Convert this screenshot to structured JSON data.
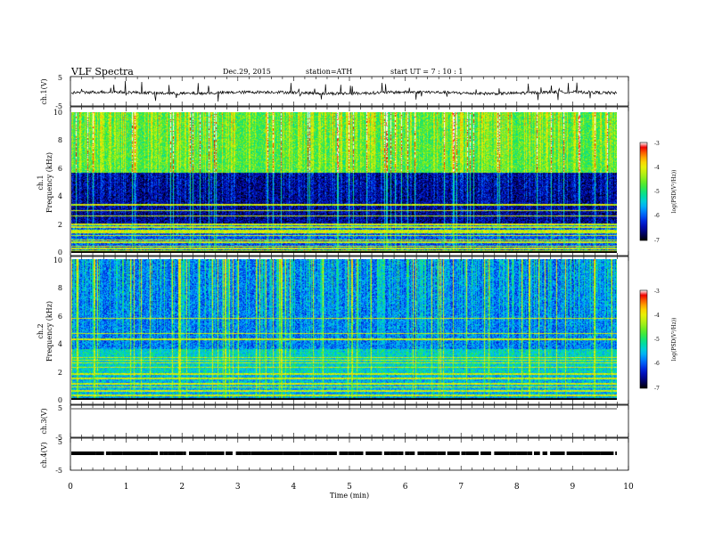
{
  "header": {
    "title": "VLF  Spectra",
    "date": "Dec.29, 2015",
    "station": "station=ATH",
    "start": "start  UT  =   7 : 10 : 1"
  },
  "chart_data": [
    {
      "type": "line",
      "id": "ch1-waveform",
      "ylabel": "ch.1(V)",
      "yticks": [
        "5",
        "-5"
      ],
      "ylim": [
        -5,
        5
      ],
      "xlim": [
        0,
        10
      ],
      "baseline_v": -0.5,
      "noise_v": 0.5
    },
    {
      "type": "heatmap",
      "id": "ch1-spectrogram",
      "ylabel": [
        "ch.1",
        "Frequency  (kHz)"
      ],
      "yticks": [
        "10",
        "8",
        "6",
        "4",
        "2",
        "0"
      ],
      "ylim_khz": [
        0,
        10
      ],
      "xlim_min": [
        0,
        9.8
      ],
      "colorbar": {
        "label": "log(PSD(V²/Hz))",
        "ticks": [
          "-3",
          "-4",
          "-5",
          "-6",
          "-7"
        ],
        "range": [
          -7,
          -3
        ]
      },
      "bands_khz": [
        {
          "from": 0.0,
          "to": 2.0,
          "level": -6.0
        },
        {
          "from": 2.0,
          "to": 5.7,
          "level": -6.6
        },
        {
          "from": 5.7,
          "to": 10.0,
          "level": -4.8
        }
      ],
      "lines_khz": [
        0.1,
        0.3,
        0.45,
        0.75,
        0.9,
        1.2,
        1.45,
        1.55,
        1.8,
        2.0,
        2.6,
        3.0,
        3.4
      ],
      "spike_density": 0.55
    },
    {
      "type": "heatmap",
      "id": "ch2-spectrogram",
      "ylabel": [
        "ch.2",
        "Frequency  (kHz)"
      ],
      "yticks": [
        "10",
        "8",
        "6",
        "4",
        "2",
        "0"
      ],
      "ylim_khz": [
        0,
        10
      ],
      "xlim_min": [
        0,
        9.8
      ],
      "colorbar": {
        "label": "log(PSD(V²/Hz))",
        "ticks": [
          "-3",
          "-4",
          "-5",
          "-6",
          "-7"
        ],
        "range": [
          -7,
          -3
        ]
      },
      "bands_khz": [
        {
          "from": 0.0,
          "to": 1.8,
          "level": -5.6
        },
        {
          "from": 1.8,
          "to": 3.6,
          "level": -5.4
        },
        {
          "from": 3.6,
          "to": 10.0,
          "level": -5.9
        }
      ],
      "lines_khz": [
        0.3,
        0.6,
        0.9,
        1.1,
        1.5,
        1.8,
        2.3,
        2.6,
        2.8,
        3.0,
        4.3,
        4.7,
        5.8
      ],
      "spike_density": 0.6
    },
    {
      "type": "line",
      "id": "ch3-waveform",
      "ylabel": "ch.3(V)",
      "yticks": [
        "5",
        "-5"
      ],
      "ylim": [
        -5,
        5
      ],
      "xlim": [
        0,
        10
      ],
      "constant_v": 5
    },
    {
      "type": "line",
      "id": "ch4-waveform",
      "ylabel": "ch.4(V)",
      "yticks": [
        "5",
        "-5"
      ],
      "ylim": [
        -5,
        5
      ],
      "xlim": [
        0,
        10
      ],
      "constant_v": 0,
      "note": "intermittent dashed trace"
    }
  ],
  "xaxis": {
    "label": "Time  (min)",
    "ticks": [
      "0",
      "1",
      "2",
      "3",
      "4",
      "5",
      "6",
      "7",
      "8",
      "9",
      "10"
    ],
    "range": [
      0,
      10
    ]
  },
  "colors": {
    "palette": [
      "#000000",
      "#000080",
      "#0000d0",
      "#0050ff",
      "#00b0ff",
      "#00e0e0",
      "#00e060",
      "#80f030",
      "#f0f000",
      "#ff8000",
      "#ff0000",
      "#ffffff"
    ]
  }
}
